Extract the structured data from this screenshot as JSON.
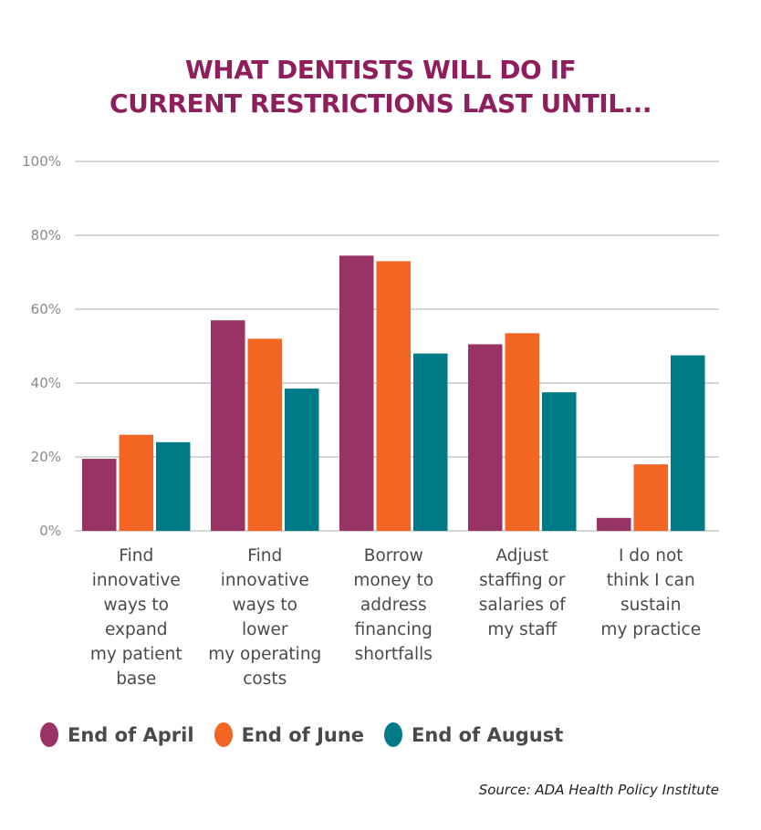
{
  "chart_data": {
    "type": "bar",
    "title": "WHAT DENTISTS WILL DO IF CURRENT RESTRICTIONS LAST UNTIL...",
    "title_lines": [
      "WHAT DENTISTS WILL DO IF",
      "CURRENT RESTRICTIONS LAST UNTIL..."
    ],
    "xlabel": "",
    "ylabel": "",
    "ylim": [
      0,
      100
    ],
    "yticks": [
      0,
      20,
      40,
      60,
      80,
      100
    ],
    "ytick_labels": [
      "0%",
      "20%",
      "40%",
      "60%",
      "80%",
      "100%"
    ],
    "grid": true,
    "legend_position": "bottom",
    "categories": [
      "Find innovative ways to expand my patient base",
      "Find innovative ways to lower my operating costs",
      "Borrow money to address financing shortfalls",
      "Adjust staffing or salaries of my staff",
      "I do not think I can sustain my practice"
    ],
    "category_lines": [
      [
        "Find",
        "innovative",
        "ways to",
        "expand",
        "my patient",
        "base"
      ],
      [
        "Find",
        "innovative",
        "ways to",
        "lower",
        "my operating",
        "costs"
      ],
      [
        "Borrow",
        "money to",
        "address",
        "financing",
        "shortfalls"
      ],
      [
        "Adjust",
        "staffing or",
        "salaries of",
        "my staff"
      ],
      [
        "I do not",
        "think I can",
        "sustain",
        "my practice"
      ]
    ],
    "series": [
      {
        "name": "End of April",
        "color": "#993366",
        "values": [
          19.5,
          57,
          74.5,
          50.5,
          3.5
        ]
      },
      {
        "name": "End of June",
        "color": "#f26522",
        "values": [
          26,
          52,
          73,
          53.5,
          18
        ]
      },
      {
        "name": "End of August",
        "color": "#007a87",
        "values": [
          24,
          38.5,
          48,
          37.5,
          47.5
        ]
      }
    ],
    "source": "Source: ADA Health Policy Institute"
  },
  "colors": {
    "title": "#8e1f5c",
    "grid": "#c8c8c8",
    "tick_text": "#8a8a8a",
    "label_text": "#4a4a4a"
  }
}
